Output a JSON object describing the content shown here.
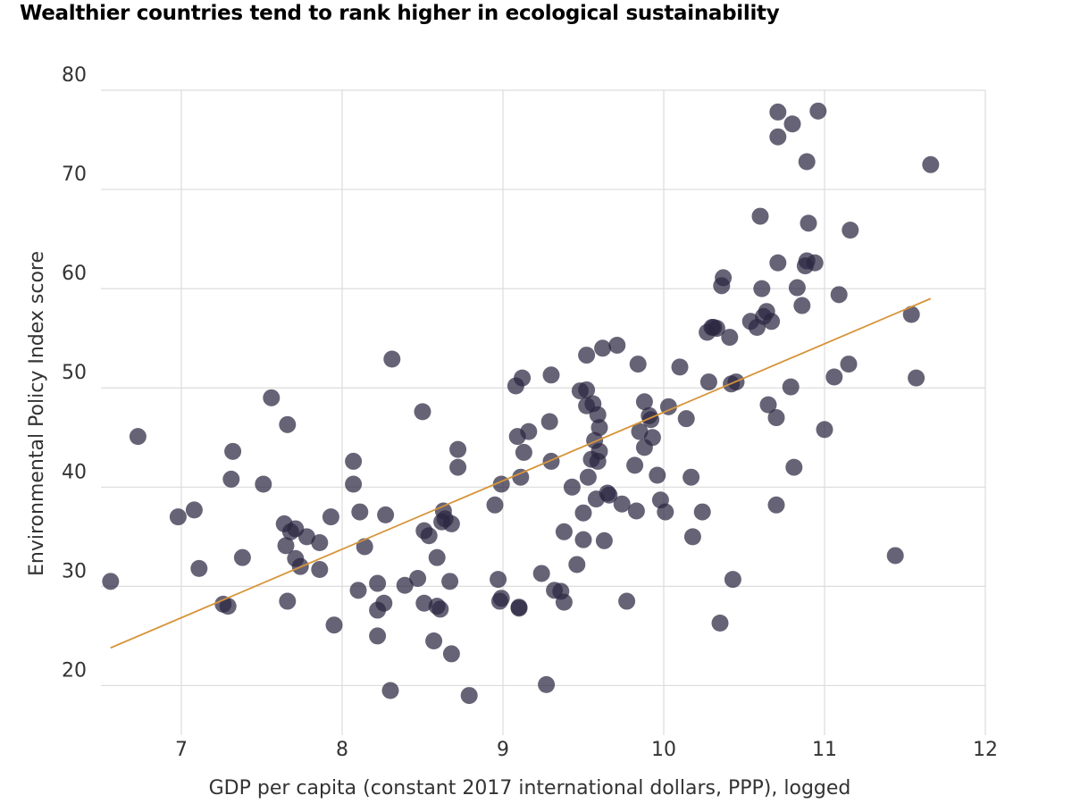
{
  "chart_data": {
    "type": "scatter",
    "title": "Wealthier countries tend to rank higher in ecological sustainability",
    "xlabel": "GDP per capita (constant 2017 international dollars, PPP), logged",
    "ylabel": "Environmental Policy Index score",
    "xlim": [
      6.5,
      12
    ],
    "ylim": [
      15,
      80
    ],
    "xticks": [
      7,
      8,
      9,
      10,
      11,
      12
    ],
    "yticks": [
      20,
      30,
      40,
      50,
      60,
      70,
      80
    ],
    "grid": true,
    "colors": {
      "points": "#2c2741",
      "trendline": "#d6943a",
      "grid": "#dcdcdc"
    },
    "trendline": {
      "x": [
        6.56,
        11.66
      ],
      "y": [
        23.8,
        59.0
      ]
    },
    "points": [
      [
        6.56,
        30.5
      ],
      [
        6.73,
        45.1
      ],
      [
        6.98,
        37.0
      ],
      [
        7.08,
        37.7
      ],
      [
        7.11,
        31.8
      ],
      [
        7.26,
        28.2
      ],
      [
        7.29,
        28.0
      ],
      [
        7.31,
        40.8
      ],
      [
        7.32,
        43.6
      ],
      [
        7.38,
        32.9
      ],
      [
        7.51,
        40.3
      ],
      [
        7.56,
        49.0
      ],
      [
        7.64,
        36.3
      ],
      [
        7.65,
        34.1
      ],
      [
        7.66,
        28.5
      ],
      [
        7.66,
        46.3
      ],
      [
        7.68,
        35.5
      ],
      [
        7.71,
        32.8
      ],
      [
        7.71,
        35.8
      ],
      [
        7.74,
        32.0
      ],
      [
        7.78,
        35.0
      ],
      [
        7.86,
        31.7
      ],
      [
        7.86,
        34.4
      ],
      [
        7.93,
        37.0
      ],
      [
        7.95,
        26.1
      ],
      [
        8.07,
        42.6
      ],
      [
        8.07,
        40.3
      ],
      [
        8.1,
        29.6
      ],
      [
        8.11,
        37.5
      ],
      [
        8.14,
        34.0
      ],
      [
        8.22,
        30.3
      ],
      [
        8.22,
        27.6
      ],
      [
        8.22,
        25.0
      ],
      [
        8.26,
        28.3
      ],
      [
        8.27,
        37.2
      ],
      [
        8.3,
        19.5
      ],
      [
        8.31,
        52.9
      ],
      [
        8.39,
        30.1
      ],
      [
        8.47,
        30.8
      ],
      [
        8.5,
        47.6
      ],
      [
        8.51,
        35.6
      ],
      [
        8.51,
        28.3
      ],
      [
        8.54,
        35.1
      ],
      [
        8.57,
        24.5
      ],
      [
        8.59,
        32.9
      ],
      [
        8.59,
        28.0
      ],
      [
        8.61,
        27.7
      ],
      [
        8.62,
        36.5
      ],
      [
        8.63,
        37.6
      ],
      [
        8.64,
        36.8
      ],
      [
        8.67,
        30.5
      ],
      [
        8.68,
        36.3
      ],
      [
        8.68,
        23.2
      ],
      [
        8.72,
        43.8
      ],
      [
        8.72,
        42.0
      ],
      [
        8.79,
        19.0
      ],
      [
        8.95,
        38.2
      ],
      [
        8.97,
        30.7
      ],
      [
        8.98,
        28.5
      ],
      [
        8.99,
        40.3
      ],
      [
        8.99,
        28.8
      ],
      [
        9.08,
        50.2
      ],
      [
        9.09,
        45.1
      ],
      [
        9.1,
        27.8
      ],
      [
        9.1,
        27.9
      ],
      [
        9.11,
        41.0
      ],
      [
        9.12,
        51.0
      ],
      [
        9.13,
        43.5
      ],
      [
        9.16,
        45.6
      ],
      [
        9.24,
        31.3
      ],
      [
        9.27,
        20.1
      ],
      [
        9.29,
        46.6
      ],
      [
        9.3,
        51.3
      ],
      [
        9.3,
        42.6
      ],
      [
        9.32,
        29.6
      ],
      [
        9.36,
        29.5
      ],
      [
        9.38,
        35.5
      ],
      [
        9.38,
        28.4
      ],
      [
        9.43,
        40.0
      ],
      [
        9.46,
        32.2
      ],
      [
        9.48,
        49.7
      ],
      [
        9.5,
        37.4
      ],
      [
        9.5,
        34.7
      ],
      [
        9.52,
        53.3
      ],
      [
        9.52,
        49.8
      ],
      [
        9.52,
        48.2
      ],
      [
        9.53,
        41.0
      ],
      [
        9.55,
        42.8
      ],
      [
        9.56,
        48.4
      ],
      [
        9.57,
        44.7
      ],
      [
        9.58,
        38.8
      ],
      [
        9.59,
        47.3
      ],
      [
        9.59,
        42.6
      ],
      [
        9.6,
        46.0
      ],
      [
        9.6,
        43.6
      ],
      [
        9.62,
        54.0
      ],
      [
        9.63,
        34.6
      ],
      [
        9.65,
        39.4
      ],
      [
        9.66,
        39.2
      ],
      [
        9.71,
        54.3
      ],
      [
        9.74,
        38.3
      ],
      [
        9.77,
        28.5
      ],
      [
        9.82,
        42.2
      ],
      [
        9.83,
        37.6
      ],
      [
        9.84,
        52.4
      ],
      [
        9.85,
        45.6
      ],
      [
        9.88,
        48.6
      ],
      [
        9.88,
        44.0
      ],
      [
        9.91,
        47.2
      ],
      [
        9.92,
        46.8
      ],
      [
        9.93,
        45.0
      ],
      [
        9.96,
        41.2
      ],
      [
        9.98,
        38.7
      ],
      [
        10.01,
        37.5
      ],
      [
        10.03,
        48.1
      ],
      [
        10.1,
        52.1
      ],
      [
        10.14,
        46.9
      ],
      [
        10.17,
        41.0
      ],
      [
        10.18,
        35.0
      ],
      [
        10.24,
        37.5
      ],
      [
        10.27,
        55.6
      ],
      [
        10.28,
        50.6
      ],
      [
        10.3,
        56.1
      ],
      [
        10.31,
        56.1
      ],
      [
        10.33,
        56.0
      ],
      [
        10.35,
        26.3
      ],
      [
        10.36,
        60.3
      ],
      [
        10.37,
        61.1
      ],
      [
        10.41,
        55.1
      ],
      [
        10.42,
        50.4
      ],
      [
        10.43,
        30.7
      ],
      [
        10.45,
        50.6
      ],
      [
        10.54,
        56.7
      ],
      [
        10.58,
        56.1
      ],
      [
        10.6,
        67.3
      ],
      [
        10.61,
        60.0
      ],
      [
        10.62,
        57.2
      ],
      [
        10.64,
        57.7
      ],
      [
        10.65,
        48.3
      ],
      [
        10.67,
        56.7
      ],
      [
        10.7,
        47.0
      ],
      [
        10.7,
        38.2
      ],
      [
        10.71,
        77.8
      ],
      [
        10.71,
        75.3
      ],
      [
        10.71,
        62.6
      ],
      [
        10.79,
        50.1
      ],
      [
        10.8,
        76.6
      ],
      [
        10.81,
        42.0
      ],
      [
        10.83,
        60.1
      ],
      [
        10.86,
        58.3
      ],
      [
        10.88,
        62.3
      ],
      [
        10.89,
        72.8
      ],
      [
        10.89,
        62.8
      ],
      [
        10.9,
        66.6
      ],
      [
        10.94,
        62.6
      ],
      [
        10.96,
        77.9
      ],
      [
        11.0,
        45.8
      ],
      [
        11.06,
        51.1
      ],
      [
        11.09,
        59.4
      ],
      [
        11.15,
        52.4
      ],
      [
        11.16,
        65.9
      ],
      [
        11.44,
        33.1
      ],
      [
        11.54,
        57.4
      ],
      [
        11.57,
        51.0
      ],
      [
        11.66,
        72.5
      ]
    ]
  }
}
